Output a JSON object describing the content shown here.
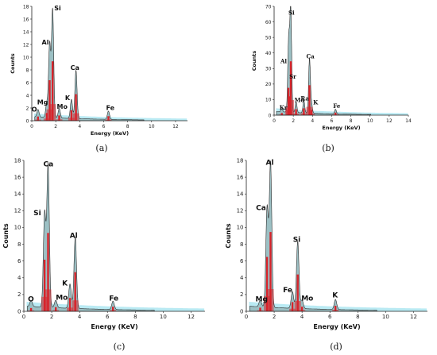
{
  "chart_data": [
    {
      "type": "line",
      "panel": "(a)",
      "xlabel": "Energy (KeV)",
      "ylabel": "Counts",
      "xlim": [
        0,
        13
      ],
      "ylim": [
        0,
        18
      ],
      "xticks": [
        0,
        2,
        4,
        6,
        8,
        10,
        12
      ],
      "yticks": [
        0,
        2,
        4,
        6,
        8,
        10,
        12,
        14,
        16,
        18
      ],
      "peaks": [
        {
          "element": "O",
          "energy": 0.52,
          "counts": 1.2
        },
        {
          "element": "Mg",
          "energy": 1.25,
          "counts": 2.2
        },
        {
          "element": "Al",
          "energy": 1.49,
          "counts": 11.6
        },
        {
          "element": "Si",
          "energy": 1.74,
          "counts": 17.0
        },
        {
          "element": "Mo",
          "energy": 2.29,
          "counts": 1.5
        },
        {
          "element": "K",
          "energy": 3.31,
          "counts": 3.0
        },
        {
          "element": "Ca",
          "energy": 3.69,
          "counts": 7.6
        },
        {
          "element": "Fe",
          "energy": 6.4,
          "counts": 1.3
        }
      ]
    },
    {
      "type": "line",
      "panel": "(b)",
      "xlabel": "Energy (KeV)",
      "ylabel": "Counts",
      "xlim": [
        0,
        14
      ],
      "ylim": [
        0,
        70
      ],
      "xticks": [
        0,
        2,
        4,
        6,
        8,
        10,
        12,
        14
      ],
      "yticks": [
        0,
        10,
        20,
        30,
        40,
        50,
        60,
        70
      ],
      "peaks": [
        {
          "element": "Kr",
          "energy": 0.8,
          "counts": 2.0
        },
        {
          "element": "Al",
          "energy": 1.49,
          "counts": 32.0
        },
        {
          "element": "Sr",
          "energy": 1.58,
          "counts": 22.0
        },
        {
          "element": "Si",
          "energy": 1.74,
          "counts": 63.0
        },
        {
          "element": "Mo",
          "energy": 2.29,
          "counts": 7.0
        },
        {
          "element": "Ra",
          "energy": 3.1,
          "counts": 8.0
        },
        {
          "element": "Ca",
          "energy": 3.69,
          "counts": 35.0
        },
        {
          "element": "K",
          "energy": 3.9,
          "counts": 6.0
        },
        {
          "element": "Fe",
          "energy": 6.4,
          "counts": 3.0
        }
      ]
    },
    {
      "type": "line",
      "panel": "(c)",
      "xlabel": "Energy (KeV)",
      "ylabel": "Counts",
      "xlim": [
        0,
        13
      ],
      "ylim": [
        0,
        18
      ],
      "xticks": [
        0,
        2,
        4,
        6,
        8,
        10,
        12
      ],
      "yticks": [
        0,
        2,
        4,
        6,
        8,
        10,
        12,
        14,
        16,
        18
      ],
      "peaks": [
        {
          "element": "O",
          "energy": 0.52,
          "counts": 0.7
        },
        {
          "element": "Si",
          "energy": 1.49,
          "counts": 11.2
        },
        {
          "element": "Ca",
          "energy": 1.74,
          "counts": 17.0
        },
        {
          "element": "Mo",
          "energy": 2.29,
          "counts": 0.9
        },
        {
          "element": "K",
          "energy": 3.31,
          "counts": 2.9
        },
        {
          "element": "Al",
          "energy": 3.69,
          "counts": 8.5
        },
        {
          "element": "Fe",
          "energy": 6.4,
          "counts": 1.0
        }
      ]
    },
    {
      "type": "line",
      "panel": "(d)",
      "xlabel": "Energy (KeV)",
      "ylabel": "Counts",
      "xlim": [
        0,
        13
      ],
      "ylim": [
        0,
        18
      ],
      "xticks": [
        0,
        2,
        4,
        6,
        8,
        10,
        12
      ],
      "yticks": [
        0,
        2,
        4,
        6,
        8,
        10,
        12,
        14,
        16,
        18
      ],
      "peaks": [
        {
          "element": "Mg",
          "energy": 1.0,
          "counts": 0.8
        },
        {
          "element": "Ca",
          "energy": 1.49,
          "counts": 11.8
        },
        {
          "element": "Al",
          "energy": 1.74,
          "counts": 17.2
        },
        {
          "element": "Fe",
          "energy": 3.31,
          "counts": 2.0
        },
        {
          "element": "Si",
          "energy": 3.69,
          "counts": 8.0
        },
        {
          "element": "Mo",
          "energy": 4.0,
          "counts": 1.0
        },
        {
          "element": "K",
          "energy": 6.4,
          "counts": 1.2
        }
      ]
    }
  ],
  "colors": {
    "spectrum_fill": "#9cc0c4",
    "spectrum_line": "#2e2e2e",
    "peak_red": "#d8232a",
    "baseline_cyan": "#7fd8ea"
  }
}
